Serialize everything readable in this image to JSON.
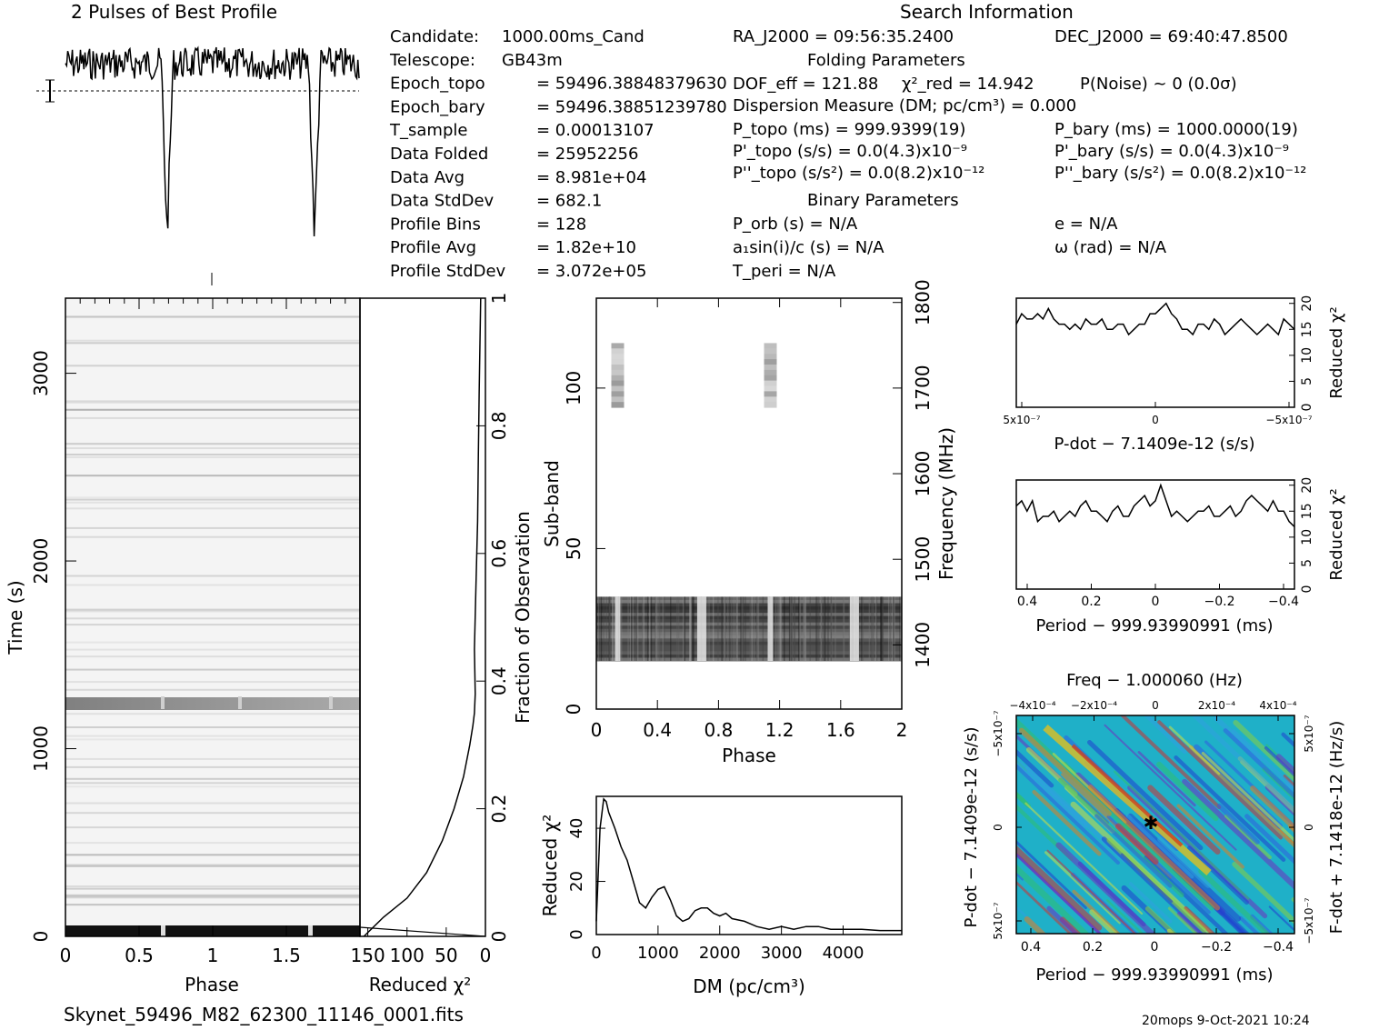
{
  "header": {
    "profile_title": "2 Pulses of Best Profile",
    "search_title": "Search Information",
    "folding_title": "Folding Parameters",
    "binary_title": "Binary Parameters"
  },
  "info_left": [
    {
      "label": "Candidate:",
      "value": "1000.00ms_Cand"
    },
    {
      "label": "Telescope:",
      "value": "GB43m"
    },
    {
      "label": "Epoch_topo",
      "value": "= 59496.38848379630"
    },
    {
      "label": "Epoch_bary",
      "value": "= 59496.38851239780"
    },
    {
      "label": "T_sample",
      "value": "=   0.00013107"
    },
    {
      "label": "Data Folded",
      "value": "=   25952256"
    },
    {
      "label": "Data Avg",
      "value": "=   8.981e+04"
    },
    {
      "label": "Data StdDev",
      "value": "=   682.1"
    },
    {
      "label": "Profile Bins",
      "value": "=   128"
    },
    {
      "label": "Profile Avg",
      "value": "=   1.82e+10"
    },
    {
      "label": "Profile StdDev",
      "value": "=   3.072e+05"
    }
  ],
  "search": {
    "ra": "RA_J2000 = 09:56:35.2400",
    "dec": "DEC_J2000 = 69:40:47.8500",
    "dof": "DOF_eff = 121.88",
    "chi2red": "χ²_red = 14.942",
    "pnoise": "P(Noise) ~ 0    (0.0σ)",
    "dm": "Dispersion Measure (DM; pc/cm³) = 0.000",
    "ptopo": "P_topo (ms) =  999.9399(19)",
    "pbary": "P_bary (ms) =  1000.0000(19)",
    "pdtopo": "P'_topo (s/s) = 0.0(4.3)x10⁻⁹",
    "pdbary": "P'_bary (s/s) = 0.0(4.3)x10⁻⁹",
    "pddtopo": "P''_topo (s/s²) = 0.0(8.2)x10⁻¹²",
    "pddbary": "P''_bary (s/s²) = 0.0(8.2)x10⁻¹²",
    "porb": "P_orb (s) = N/A",
    "ecc": "e = N/A",
    "a1sini": "a₁sin(i)/c (s) = N/A",
    "omega": "ω (rad) = N/A",
    "tperi": "T_peri = N/A"
  },
  "footer": {
    "filename": "Skynet_59496_M82_62300_11146_0001.fits",
    "stamp": "20mops   9-Oct-2021 10:24"
  },
  "chart_data": [
    {
      "type": "line",
      "name": "profile",
      "title": "2 Pulses of Best Profile",
      "x_range": [
        0,
        2
      ],
      "pulse_dips_at_phase": [
        0.69,
        1.69
      ]
    },
    {
      "type": "heatmap",
      "name": "time-phase",
      "xlabel": "Phase",
      "ylabel": "Time (s)",
      "xlim": [
        0,
        2
      ],
      "ylim": [
        0,
        3400
      ],
      "x_ticks": [
        "0",
        "0.5",
        "1",
        "1.5"
      ],
      "y_ticks": [
        "0",
        "1000",
        "2000",
        "3000"
      ],
      "bright_band_time_s": 1240
    },
    {
      "type": "line",
      "name": "time-chi2",
      "xlabel": "Reduced χ²",
      "ylabel": "Fraction of Observation",
      "x_ticks": [
        "150",
        "100",
        "50",
        "0"
      ],
      "y_ticks": [
        "0",
        "0.2",
        "0.4",
        "0.6",
        "0.8",
        "1"
      ],
      "xlim": [
        160,
        0
      ],
      "x": [
        155,
        130,
        100,
        75,
        55,
        40,
        28,
        20,
        16,
        14,
        13,
        14,
        12,
        10,
        9,
        8,
        7,
        6
      ],
      "y": [
        0.0,
        0.03,
        0.06,
        0.1,
        0.15,
        0.2,
        0.25,
        0.3,
        0.33,
        0.35,
        0.38,
        0.45,
        0.55,
        0.65,
        0.75,
        0.85,
        0.93,
        1.0
      ]
    },
    {
      "type": "heatmap",
      "name": "subband-phase",
      "xlabel": "Phase",
      "ylabel": "Sub-band",
      "y2label": "Frequency (MHz)",
      "xlim": [
        0,
        2
      ],
      "ylim": [
        0,
        128
      ],
      "y2lim": [
        1325,
        1805
      ],
      "x_ticks": [
        "0",
        "0.4",
        "0.8",
        "1.2",
        "1.6",
        "2"
      ],
      "y_ticks": [
        "0",
        "50",
        "100"
      ],
      "y2_ticks": [
        "1400",
        "1500",
        "1600",
        "1700",
        "1800"
      ],
      "dark_band_subbands": [
        15,
        35
      ],
      "faint_patch_subbands": [
        94,
        114
      ]
    },
    {
      "type": "line",
      "name": "dm-chi2",
      "xlabel": "DM (pc/cm³)",
      "ylabel": "Reduced χ²",
      "xlim": [
        0,
        4950
      ],
      "ylim": [
        0,
        52
      ],
      "x_ticks": [
        "0",
        "1000",
        "2000",
        "3000",
        "4000"
      ],
      "y_ticks": [
        "0",
        "20",
        "40"
      ],
      "x": [
        0,
        60,
        120,
        160,
        200,
        300,
        400,
        500,
        600,
        700,
        800,
        900,
        1000,
        1100,
        1200,
        1300,
        1400,
        1500,
        1600,
        1700,
        1800,
        1900,
        2000,
        2100,
        2200,
        2400,
        2600,
        2800,
        3000,
        3200,
        3400,
        3600,
        3800,
        4000,
        4300,
        4600,
        4950
      ],
      "y": [
        5,
        40,
        51,
        50,
        46,
        40,
        33,
        28,
        20,
        12,
        10,
        14,
        17,
        18,
        13,
        7,
        5,
        6,
        9,
        10,
        10,
        8,
        7,
        8,
        6,
        5,
        3,
        2,
        3,
        2,
        3,
        3,
        2,
        2,
        2,
        1.5,
        1.5
      ]
    },
    {
      "type": "line",
      "name": "pdot-chi2",
      "xlabel": "P-dot − 7.1409e-12 (s/s)",
      "ylabel": "Reduced χ²",
      "x_ticks": [
        "5x10⁻⁷",
        "0",
        "−5x10⁻⁷"
      ],
      "ylim": [
        0,
        21
      ],
      "y_ticks": [
        "0",
        "5",
        "10",
        "15",
        "20"
      ],
      "y": [
        16,
        18,
        17,
        17,
        18,
        17,
        19,
        17,
        16,
        16,
        15,
        16,
        15,
        17,
        16,
        16,
        17,
        15,
        15,
        16,
        16,
        14,
        15,
        16,
        16,
        18,
        18,
        19,
        20,
        18,
        17,
        15,
        15,
        14,
        16,
        16,
        15,
        17,
        16,
        14,
        15,
        16,
        17,
        16,
        15,
        14,
        15,
        16,
        15,
        14,
        17,
        16,
        15
      ]
    },
    {
      "type": "line",
      "name": "period-chi2",
      "xlabel": "Period − 999.93990991 (ms)",
      "ylabel": "Reduced χ²",
      "x_ticks": [
        "0.4",
        "0.2",
        "0",
        "−0.2",
        "−0.4"
      ],
      "ylim": [
        0,
        21
      ],
      "y_ticks": [
        "0",
        "5",
        "10",
        "15",
        "20"
      ],
      "y": [
        16,
        17,
        15,
        17,
        13,
        14,
        14,
        15,
        13,
        14,
        15,
        14,
        16,
        17,
        15,
        15,
        14,
        13,
        15,
        16,
        14,
        14,
        16,
        17,
        18,
        16,
        17,
        20,
        17,
        14,
        15,
        14,
        13,
        14,
        15,
        15,
        16,
        14,
        14,
        15,
        16,
        14,
        15,
        17,
        18,
        17,
        16,
        15,
        17,
        15,
        15,
        13,
        12
      ]
    },
    {
      "type": "heatmap",
      "name": "period-pdot-plane",
      "title": "Freq − 1.000060 (Hz)",
      "xlabel": "Period − 999.93990991 (ms)",
      "ylabel": "P-dot − 7.1409e-12 (s/s)",
      "y2label": "F-dot + 7.1418e-12 (Hz/s)",
      "x_ticks": [
        "0.4",
        "0.2",
        "0",
        "−0.2",
        "−0.4"
      ],
      "top_ticks": [
        "−4x10⁻⁴",
        "−2x10⁻⁴",
        "0",
        "2x10⁻⁴",
        "4x10⁻⁴"
      ],
      "y_ticks": [
        "−5x10⁻⁷",
        "0",
        "5x10⁻⁷"
      ],
      "y2_ticks": [
        "5x10⁻⁷",
        "0",
        "−5x10⁻⁷"
      ]
    }
  ]
}
